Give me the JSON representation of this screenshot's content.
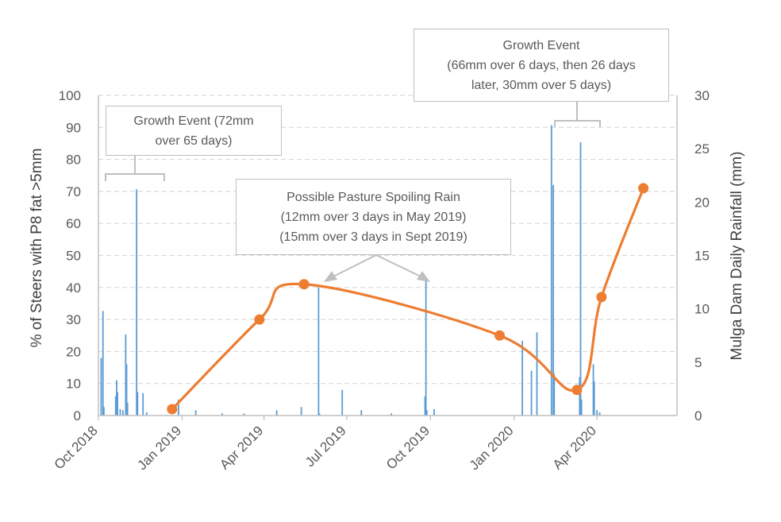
{
  "chart_data": {
    "type": "line+bar",
    "ylabel": "% of Steers with P8 fat >5mm",
    "y2label": "Mulga Dam Daily Rainfall (mm)",
    "ylim": [
      0,
      100
    ],
    "y2lim": [
      0,
      30
    ],
    "yticks": [
      "0",
      "10",
      "20",
      "30",
      "40",
      "50",
      "60",
      "70",
      "80",
      "90",
      "100"
    ],
    "y2ticks": [
      "0",
      "5",
      "10",
      "15",
      "20",
      "25",
      "30"
    ],
    "xlim": [
      "2018-10-01",
      "2020-06-28"
    ],
    "xticks": [
      {
        "date": "2018-10-01",
        "label": "Oct 2018"
      },
      {
        "date": "2019-01-01",
        "label": "Jan 2019"
      },
      {
        "date": "2019-04-01",
        "label": "Apr 2019"
      },
      {
        "date": "2019-07-01",
        "label": "Jul 2019"
      },
      {
        "date": "2019-10-01",
        "label": "Oct 2019"
      },
      {
        "date": "2020-01-01",
        "label": "Jan 2020"
      },
      {
        "date": "2020-04-01",
        "label": "Apr 2020"
      }
    ],
    "grid": true,
    "line_series": {
      "color": "#ed7d31",
      "points": [
        {
          "date": "2018-12-21",
          "value": 2
        },
        {
          "date": "2019-03-27",
          "value": 30
        },
        {
          "date": "2019-05-15",
          "value": 41
        },
        {
          "date": "2019-12-16",
          "value": 25
        },
        {
          "date": "2020-03-10",
          "value": 8
        },
        {
          "date": "2020-04-06",
          "value": 37
        },
        {
          "date": "2020-05-22",
          "value": 71
        }
      ]
    },
    "bar_series": {
      "color": "#5b9bd5",
      "axis": "right",
      "points": [
        {
          "date": "2018-10-04",
          "value": 5.4
        },
        {
          "date": "2018-10-06",
          "value": 9.8
        },
        {
          "date": "2018-10-07",
          "value": 0.8
        },
        {
          "date": "2018-10-20",
          "value": 1.8
        },
        {
          "date": "2018-10-21",
          "value": 3.3
        },
        {
          "date": "2018-10-22",
          "value": 2.2
        },
        {
          "date": "2018-10-25",
          "value": 0.6
        },
        {
          "date": "2018-10-28",
          "value": 0.5
        },
        {
          "date": "2018-10-31",
          "value": 7.6
        },
        {
          "date": "2018-11-01",
          "value": 4.8
        },
        {
          "date": "2018-11-02",
          "value": 1.2
        },
        {
          "date": "2018-11-12",
          "value": 21.2
        },
        {
          "date": "2018-11-13",
          "value": 2.2
        },
        {
          "date": "2018-11-19",
          "value": 2.1
        },
        {
          "date": "2018-11-23",
          "value": 0.3
        },
        {
          "date": "2018-12-28",
          "value": 1.5
        },
        {
          "date": "2019-01-16",
          "value": 0.5
        },
        {
          "date": "2019-02-14",
          "value": 0.2
        },
        {
          "date": "2019-03-10",
          "value": 0.2
        },
        {
          "date": "2019-04-15",
          "value": 0.5
        },
        {
          "date": "2019-05-12",
          "value": 0.8
        },
        {
          "date": "2019-05-31",
          "value": 12.0
        },
        {
          "date": "2019-06-01",
          "value": 0.2
        },
        {
          "date": "2019-06-26",
          "value": 2.4
        },
        {
          "date": "2019-07-17",
          "value": 0.5
        },
        {
          "date": "2019-08-19",
          "value": 0.2
        },
        {
          "date": "2019-09-25",
          "value": 1.8
        },
        {
          "date": "2019-09-26",
          "value": 12.8
        },
        {
          "date": "2019-09-27",
          "value": 0.5
        },
        {
          "date": "2019-10-05",
          "value": 0.6
        },
        {
          "date": "2020-01-10",
          "value": 7.0
        },
        {
          "date": "2020-01-20",
          "value": 4.2
        },
        {
          "date": "2020-01-26",
          "value": 7.8
        },
        {
          "date": "2020-02-11",
          "value": 27.2
        },
        {
          "date": "2020-02-13",
          "value": 21.6
        },
        {
          "date": "2020-02-14",
          "value": 3.9
        },
        {
          "date": "2020-03-13",
          "value": 3.6
        },
        {
          "date": "2020-03-14",
          "value": 25.6
        },
        {
          "date": "2020-03-15",
          "value": 1.5
        },
        {
          "date": "2020-03-28",
          "value": 4.8
        },
        {
          "date": "2020-03-29",
          "value": 3.2
        },
        {
          "date": "2020-04-01",
          "value": 0.5
        },
        {
          "date": "2020-04-04",
          "value": 0.3
        }
      ]
    },
    "annotations": {
      "growth_event_1": [
        "Growth Event (72mm",
        "over 65 days)"
      ],
      "spoiling_rain": [
        "Possible Pasture Spoiling Rain",
        "(12mm over 3 days in May 2019)",
        "(15mm over 3 days in Sept 2019)"
      ],
      "growth_event_2": [
        "Growth Event",
        "(66mm over 6 days, then 26 days",
        "later, 30mm over 5 days)"
      ]
    }
  }
}
